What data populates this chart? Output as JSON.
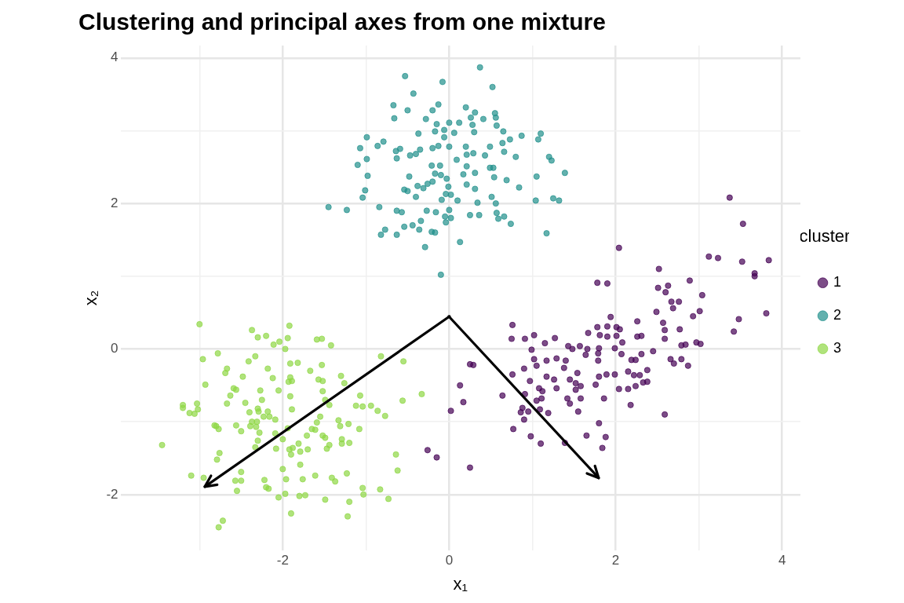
{
  "chart_data": {
    "type": "scatter",
    "title": "Clustering and principal axes from one mixture",
    "xlabel": "x₁",
    "ylabel": "x₂",
    "legend_title": "cluster",
    "legend": "right",
    "grid": true,
    "marker": "circle",
    "xlim": [
      -3.95,
      4.22
    ],
    "ylim": [
      -2.77,
      4.17
    ],
    "xticks": [
      {
        "value": -3,
        "label": null
      },
      -2,
      {
        "value": -1,
        "label": null
      },
      0,
      {
        "value": 1,
        "label": null
      },
      2,
      {
        "value": 3,
        "label": null
      },
      4
    ],
    "yticks": [
      {
        "value": -1,
        "label": null
      },
      -2,
      0,
      {
        "value": 1,
        "label": null
      },
      2,
      {
        "value": 3,
        "label": null
      },
      4
    ],
    "series": [
      {
        "name": "1",
        "color": "#440154",
        "x": [
          3.37,
          3.53,
          2.04,
          3.12,
          3.23,
          3.52,
          3.84,
          2.52,
          3.67,
          3.67,
          1.78,
          1.9,
          2.89,
          2.63,
          2.51,
          2.6,
          3.04,
          2.67,
          2.76,
          2.69,
          2.49,
          2.93,
          3.01,
          3.81,
          3.48,
          3.42,
          1.94,
          2.26,
          2.57,
          0.76,
          1.78,
          1.9,
          2.01,
          2.05,
          1.67,
          2.59,
          2.77,
          1.02,
          0.75,
          0.91,
          1.27,
          1.81,
          1.9,
          2.01,
          2.26,
          2.31,
          2.59,
          1.15,
          2.08,
          2.79,
          2.84,
          2.97,
          3.02,
          1.43,
          1.57,
          1.66,
          1.8,
          1.99,
          1.48,
          0.99,
          2.45,
          1.79,
          1.64,
          2.07,
          2.31,
          1.02,
          1.17,
          1.29,
          1.4,
          1.79,
          2.19,
          2.24,
          2.66,
          2.79,
          2.7,
          2.87,
          1.05,
          1.38,
          0.9,
          2.15,
          2.38,
          1.54,
          2.22,
          2.29,
          1.89,
          1.99,
          1.8,
          0.76,
          1.17,
          0.25,
          0.29,
          1.45,
          1.26,
          0.97,
          1.52,
          1.58,
          1.76,
          2.24,
          2.38,
          2.33,
          1.08,
          1.12,
          1.29,
          1.52,
          2.04,
          2.15,
          0.91,
          0.64,
          1.11,
          1.05,
          1.42,
          1.58,
          1.86,
          1.45,
          0.13,
          0.17,
          0.02,
          2.18,
          0.88,
          1.09,
          0.86,
          0.95,
          1.19,
          1.55,
          2.59,
          0.9,
          1.8,
          0.77,
          1.65,
          1.88,
          0.98,
          1.1,
          1.39,
          1.84,
          -0.26,
          -0.15,
          0.25
        ],
        "values": [
          2.08,
          1.72,
          1.39,
          1.27,
          1.25,
          1.2,
          1.22,
          1.1,
          1.04,
          1.0,
          0.91,
          0.9,
          0.94,
          0.87,
          0.84,
          0.78,
          0.74,
          0.65,
          0.65,
          0.56,
          0.51,
          0.45,
          0.52,
          0.49,
          0.41,
          0.24,
          0.44,
          0.38,
          0.36,
          0.33,
          0.3,
          0.31,
          0.3,
          0.27,
          0.22,
          0.26,
          0.27,
          0.19,
          0.14,
          0.14,
          0.15,
          0.19,
          0.17,
          0.18,
          0.17,
          0.18,
          0.14,
          0.08,
          0.09,
          0.05,
          0.06,
          0.09,
          0.07,
          0.04,
          0.04,
          0.0,
          0.01,
          0.01,
          0.0,
          -0.01,
          -0.03,
          -0.06,
          -0.08,
          -0.07,
          -0.07,
          -0.14,
          -0.16,
          -0.13,
          -0.16,
          -0.16,
          -0.15,
          -0.15,
          -0.14,
          -0.14,
          -0.2,
          -0.23,
          -0.23,
          -0.26,
          -0.27,
          -0.31,
          -0.29,
          -0.33,
          -0.36,
          -0.36,
          -0.35,
          -0.35,
          -0.38,
          -0.35,
          -0.38,
          -0.21,
          -0.22,
          -0.42,
          -0.42,
          -0.44,
          -0.47,
          -0.51,
          -0.49,
          -0.51,
          -0.45,
          -0.46,
          -0.54,
          -0.58,
          -0.54,
          -0.56,
          -0.55,
          -0.55,
          -0.62,
          -0.64,
          -0.68,
          -0.71,
          -0.68,
          -0.68,
          -0.68,
          -0.75,
          -0.5,
          -0.73,
          -0.85,
          -0.77,
          -0.81,
          -0.83,
          -0.87,
          -0.86,
          -0.88,
          -0.86,
          -0.9,
          -0.97,
          -1.02,
          -1.1,
          -1.19,
          -1.21,
          -1.2,
          -1.3,
          -1.29,
          -1.36,
          -1.39,
          -1.49,
          -1.63
        ]
      },
      {
        "name": "2",
        "color": "#21908c",
        "x": [
          0.37,
          -0.53,
          -0.08,
          0.52,
          -0.43,
          -0.67,
          -0.5,
          -0.13,
          -0.2,
          -0.66,
          -0.28,
          0.2,
          0.31,
          0.55,
          0.56,
          0.41,
          0.26,
          0,
          0.12,
          -0.15,
          0.28,
          0.57,
          -0.06,
          -0.17,
          0.06,
          0.3,
          -0.37,
          0.65,
          1.1,
          1.07,
          0.87,
          0.73,
          -0.06,
          -0.99,
          -0.79,
          -0.86,
          -1.07,
          0.64,
          0.49,
          0,
          -0.13,
          -0.2,
          -0.59,
          -0.64,
          -0.35,
          -0.4,
          -0.47,
          -0.63,
          -0.99,
          -1.1,
          0.2,
          0.21,
          0.29,
          0.43,
          0.66,
          0.8,
          1.2,
          1.23,
          1.39,
          1.05,
          0.09,
          0.21,
          -0.11,
          -0.21,
          0.49,
          0.53,
          0.31,
          0.17,
          -0.17,
          -0.1,
          -0.03,
          0.54,
          0.69,
          0.84,
          -0.98,
          -0.48,
          -0.2,
          -0.26,
          -0.38,
          -0.31,
          -0.54,
          -0.5,
          -0.01,
          0.21,
          0.31,
          -1.01,
          -1.04,
          -0.4,
          -0.04,
          0.02,
          -0.09,
          0.1,
          0.51,
          1.04,
          1.25,
          1.32,
          0.34,
          0.56,
          -1.45,
          -1.23,
          -0.84,
          -0.63,
          -0.57,
          -0.27,
          -0.16,
          0,
          -0.05,
          0.02,
          -0.04,
          0.25,
          0.36,
          0.57,
          0.59,
          0.66,
          0.74,
          1.17,
          -0.34,
          -0.44,
          -0.54,
          -0.36,
          -0.77,
          -0.82,
          -0.63,
          -0.21,
          -0.17,
          0.13,
          -0.29,
          -0.1
        ],
        "values": [
          3.87,
          3.75,
          3.67,
          3.6,
          3.51,
          3.35,
          3.28,
          3.36,
          3.28,
          3.17,
          3.16,
          3.32,
          3.25,
          3.24,
          3.18,
          3.16,
          3.18,
          3.11,
          3.11,
          3.09,
          3.08,
          3.07,
          3.01,
          2.99,
          2.97,
          2.98,
          2.96,
          2.99,
          2.96,
          2.88,
          2.93,
          2.88,
          2.91,
          2.91,
          2.85,
          2.79,
          2.76,
          2.83,
          2.78,
          2.78,
          2.79,
          2.76,
          2.75,
          2.72,
          2.74,
          2.68,
          2.66,
          2.62,
          2.61,
          2.53,
          2.78,
          2.67,
          2.69,
          2.66,
          2.71,
          2.64,
          2.64,
          2.59,
          2.42,
          2.37,
          2.6,
          2.51,
          2.52,
          2.52,
          2.49,
          2.49,
          2.42,
          2.4,
          2.41,
          2.39,
          2.34,
          2.36,
          2.32,
          2.22,
          2.38,
          2.37,
          2.3,
          2.27,
          2.24,
          2.21,
          2.19,
          2.17,
          2.23,
          2.26,
          2.2,
          2.18,
          2.08,
          2.09,
          2.13,
          2.12,
          2.05,
          2.04,
          2.09,
          2.04,
          2.07,
          2.04,
          2.01,
          2.0,
          1.95,
          1.91,
          1.95,
          1.9,
          1.88,
          1.9,
          1.88,
          1.91,
          1.82,
          1.8,
          1.74,
          1.84,
          1.84,
          1.87,
          1.79,
          1.82,
          1.72,
          1.59,
          1.76,
          1.7,
          1.68,
          1.64,
          1.64,
          1.57,
          1.57,
          1.61,
          1.6,
          1.47,
          1.4,
          1.02
        ]
      },
      {
        "name": "3",
        "color": "#8fd744",
        "x": [
          -3,
          -2.37,
          -1.92,
          -2.3,
          -2.2,
          -1.94,
          -2.04,
          -2.11,
          -1.97,
          -1.59,
          -1.53,
          -1.42,
          -2.78,
          -2.96,
          -2.33,
          -2.41,
          -1.91,
          -1.82,
          -1.53,
          -0.82,
          -0.55,
          -2.67,
          -2.69,
          -2.18,
          -1.67,
          -2.48,
          -2.12,
          -1.91,
          -1.93,
          -1.89,
          -1.57,
          -1.52,
          -1.3,
          -1.26,
          -2.93,
          -2.59,
          -2.56,
          -2.63,
          -2.27,
          -2.05,
          -1.52,
          -1.91,
          -1.07,
          -2.25,
          -2.45,
          -2.67,
          -3.2,
          -3.2,
          -3.03,
          -3.02,
          -3.12,
          -3.06,
          -1.49,
          -1.44,
          -1.89,
          -2.4,
          -2.3,
          -2.29,
          -2.18,
          -2.23,
          -2.16,
          -2.09,
          -1.12,
          -1.04,
          -0.94,
          -0.86,
          -0.77,
          -0.56,
          -0.33,
          -1.55,
          -1.59,
          -2.8,
          -2.82,
          -2.77,
          -2.56,
          -2.5,
          -2.37,
          -2.31,
          -2.39,
          -2.32,
          -2.28,
          -1.94,
          -2.09,
          -2.0,
          -1.65,
          -1.61,
          -1.71,
          -1.52,
          -1.49,
          -1.33,
          -1.31,
          -1.21,
          -1.08,
          -1.29,
          -1.29,
          -1.2,
          -1.44,
          -1.47,
          -2.3,
          -2.33,
          -2.08,
          -3.45,
          -1.81,
          -1.92,
          -1.88,
          -1.9,
          -1.79,
          -1.7,
          -2.76,
          -2.79,
          -1.79,
          -2.0,
          -2.5,
          -3.1,
          -2.95,
          -2.57,
          -2.5,
          -2.55,
          -2.22,
          -1.96,
          -2.2,
          -2.17,
          -1.76,
          -1.61,
          -1.41,
          -1.37,
          -1.23,
          -0.64,
          -0.62,
          -1.04,
          -1.03,
          -0.83,
          -0.73,
          -2.05,
          -1.97,
          -1.8,
          -1.73,
          -1.49,
          -1.2,
          -1.9,
          -1.22,
          -2.72,
          -2.77
        ],
        "values": [
          0.34,
          0.26,
          0.32,
          0.16,
          0.18,
          0.15,
          0.1,
          0.06,
          0.0,
          0.13,
          0.14,
          0.05,
          -0.06,
          -0.14,
          -0.1,
          -0.17,
          -0.2,
          -0.19,
          -0.22,
          -0.1,
          -0.17,
          -0.27,
          -0.33,
          -0.27,
          -0.3,
          -0.38,
          -0.4,
          -0.39,
          -0.45,
          -0.44,
          -0.42,
          -0.44,
          -0.37,
          -0.47,
          -0.49,
          -0.54,
          -0.56,
          -0.64,
          -0.57,
          -0.57,
          -0.58,
          -0.65,
          -0.64,
          -0.7,
          -0.74,
          -0.75,
          -0.77,
          -0.81,
          -0.75,
          -0.83,
          -0.88,
          -0.89,
          -0.7,
          -0.77,
          -0.83,
          -0.87,
          -0.82,
          -0.86,
          -0.86,
          -0.93,
          -0.93,
          -0.97,
          -0.78,
          -0.79,
          -0.78,
          -0.85,
          -0.92,
          -0.71,
          -0.62,
          -0.93,
          -1.01,
          -1.06,
          -1.05,
          -1.1,
          -1.05,
          -1.13,
          -1.0,
          -1.0,
          -1.06,
          -1.07,
          -1.15,
          -1.09,
          -1.16,
          -1.24,
          -1.1,
          -1.11,
          -1.19,
          -1.19,
          -1.22,
          -0.98,
          -1.06,
          -1.03,
          -1.1,
          -1.24,
          -1.3,
          -1.29,
          -1.32,
          -1.37,
          -1.26,
          -1.35,
          -1.37,
          -1.32,
          -1.3,
          -1.38,
          -1.36,
          -1.45,
          -1.41,
          -1.38,
          -1.43,
          -1.52,
          -1.59,
          -1.65,
          -1.69,
          -1.74,
          -1.77,
          -1.81,
          -1.81,
          -1.95,
          -1.8,
          -1.79,
          -1.9,
          -1.92,
          -1.79,
          -1.74,
          -1.77,
          -1.82,
          -1.71,
          -1.45,
          -1.67,
          -1.91,
          -2.0,
          -1.93,
          -2.06,
          -2.04,
          -1.99,
          -2.02,
          -2.01,
          -2.07,
          -2.1,
          -2.26,
          -2.3,
          -2.36,
          -2.45
        ]
      }
    ]
  }
}
